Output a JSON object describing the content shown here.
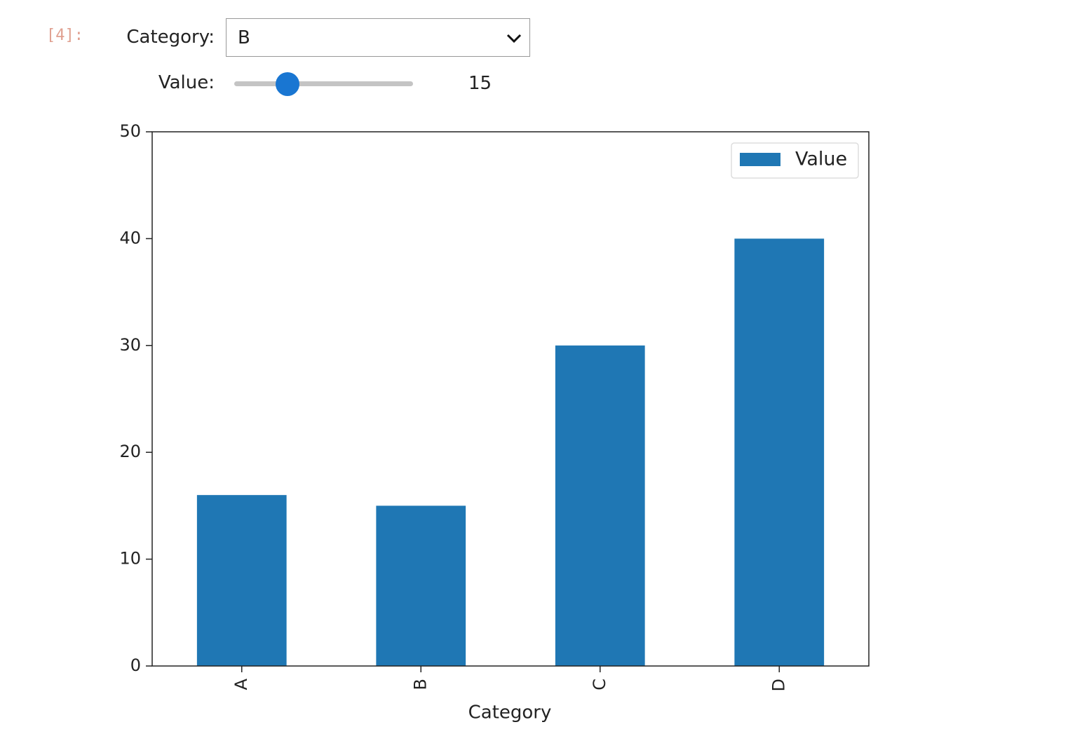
{
  "notebook": {
    "prompt": "[4]:",
    "widgets": {
      "dropdown": {
        "label": "Category:",
        "value": "B"
      },
      "slider": {
        "label": "Value:",
        "value": 15
      }
    }
  },
  "chart_data": {
    "type": "bar",
    "x_label": "Category",
    "categories": [
      "A",
      "B",
      "C",
      "D"
    ],
    "series": [
      {
        "name": "Value",
        "color": "#1f77b4",
        "values": [
          16,
          15,
          30,
          40
        ]
      }
    ],
    "ylim": [
      0,
      50
    ],
    "yticks": [
      0,
      10,
      20,
      30,
      40,
      50
    ],
    "legend": "upper right"
  }
}
